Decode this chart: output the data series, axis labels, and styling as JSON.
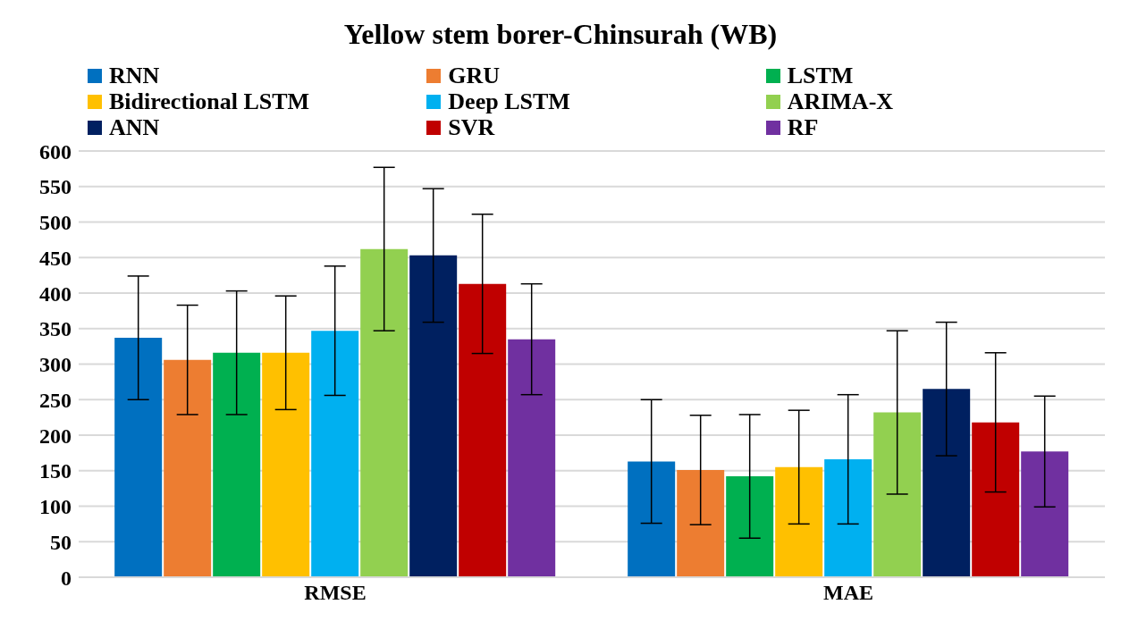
{
  "chart_data": {
    "type": "bar",
    "title": "Yellow stem borer-Chinsurah (WB)",
    "categories": [
      "RMSE",
      "MAE"
    ],
    "series": [
      {
        "name": "RNN",
        "color": "#0070c0",
        "values": [
          337,
          163
        ],
        "errors": [
          87,
          87
        ]
      },
      {
        "name": "GRU",
        "color": "#ed7d31",
        "values": [
          306,
          151
        ],
        "errors": [
          77,
          77
        ]
      },
      {
        "name": "LSTM",
        "color": "#00b050",
        "values": [
          316,
          142
        ],
        "errors": [
          87,
          87
        ]
      },
      {
        "name": "Bidirectional LSTM",
        "color": "#ffc000",
        "values": [
          316,
          155
        ],
        "errors": [
          80,
          80
        ]
      },
      {
        "name": "Deep LSTM",
        "color": "#00b0f0",
        "values": [
          347,
          166
        ],
        "errors": [
          91,
          91
        ]
      },
      {
        "name": "ARIMA-X",
        "color": "#92d050",
        "values": [
          462,
          232
        ],
        "errors": [
          115,
          115
        ]
      },
      {
        "name": "ANN",
        "color": "#002060",
        "values": [
          453,
          265
        ],
        "errors": [
          94,
          94
        ]
      },
      {
        "name": "SVR",
        "color": "#c00000",
        "values": [
          413,
          218
        ],
        "errors": [
          98,
          98
        ]
      },
      {
        "name": "RF",
        "color": "#7030a0",
        "values": [
          335,
          177
        ],
        "errors": [
          78,
          78
        ]
      }
    ],
    "ylim": [
      0,
      600
    ],
    "yticks": [
      0,
      50,
      100,
      150,
      200,
      250,
      300,
      350,
      400,
      450,
      500,
      550,
      600
    ],
    "grid": "y",
    "legend": "top"
  }
}
